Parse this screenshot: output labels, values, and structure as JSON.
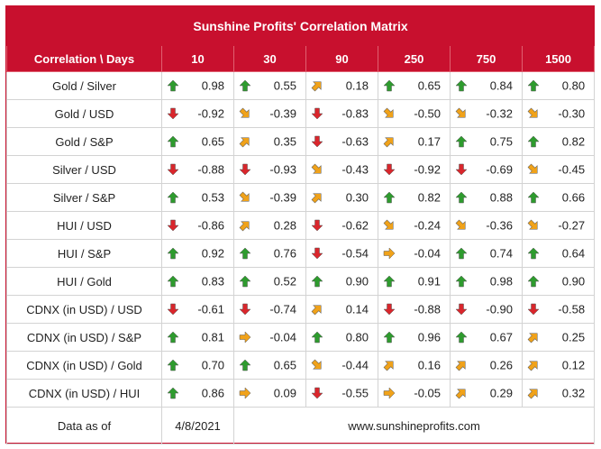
{
  "title": "Sunshine Profits' Correlation Matrix",
  "header": {
    "first": "Correlation \\ Days",
    "days": [
      "10",
      "30",
      "90",
      "250",
      "750",
      "1500"
    ]
  },
  "colors": {
    "brand": "#c8102e",
    "up": "#2e9b2e",
    "down": "#d9262c",
    "diag": "#f0a21a",
    "flat": "#f0a21a"
  },
  "rows": [
    {
      "label": "Gold / Silver",
      "cells": [
        {
          "v": "0.98",
          "a": "up"
        },
        {
          "v": "0.55",
          "a": "up"
        },
        {
          "v": "0.18",
          "a": "diag-up"
        },
        {
          "v": "0.65",
          "a": "up"
        },
        {
          "v": "0.84",
          "a": "up"
        },
        {
          "v": "0.80",
          "a": "up"
        }
      ]
    },
    {
      "label": "Gold / USD",
      "cells": [
        {
          "v": "-0.92",
          "a": "down"
        },
        {
          "v": "-0.39",
          "a": "diag-down"
        },
        {
          "v": "-0.83",
          "a": "down"
        },
        {
          "v": "-0.50",
          "a": "diag-down"
        },
        {
          "v": "-0.32",
          "a": "diag-down"
        },
        {
          "v": "-0.30",
          "a": "diag-down"
        }
      ]
    },
    {
      "label": "Gold / S&P",
      "cells": [
        {
          "v": "0.65",
          "a": "up"
        },
        {
          "v": "0.35",
          "a": "diag-up"
        },
        {
          "v": "-0.63",
          "a": "down"
        },
        {
          "v": "0.17",
          "a": "diag-up"
        },
        {
          "v": "0.75",
          "a": "up"
        },
        {
          "v": "0.82",
          "a": "up"
        }
      ]
    },
    {
      "label": "Silver / USD",
      "cells": [
        {
          "v": "-0.88",
          "a": "down"
        },
        {
          "v": "-0.93",
          "a": "down"
        },
        {
          "v": "-0.43",
          "a": "diag-down"
        },
        {
          "v": "-0.92",
          "a": "down"
        },
        {
          "v": "-0.69",
          "a": "down"
        },
        {
          "v": "-0.45",
          "a": "diag-down"
        }
      ]
    },
    {
      "label": "Silver / S&P",
      "cells": [
        {
          "v": "0.53",
          "a": "up"
        },
        {
          "v": "-0.39",
          "a": "diag-down"
        },
        {
          "v": "0.30",
          "a": "diag-up"
        },
        {
          "v": "0.82",
          "a": "up"
        },
        {
          "v": "0.88",
          "a": "up"
        },
        {
          "v": "0.66",
          "a": "up"
        }
      ]
    },
    {
      "label": "HUI / USD",
      "cells": [
        {
          "v": "-0.86",
          "a": "down"
        },
        {
          "v": "0.28",
          "a": "diag-up"
        },
        {
          "v": "-0.62",
          "a": "down"
        },
        {
          "v": "-0.24",
          "a": "diag-down"
        },
        {
          "v": "-0.36",
          "a": "diag-down"
        },
        {
          "v": "-0.27",
          "a": "diag-down"
        }
      ]
    },
    {
      "label": "HUI / S&P",
      "cells": [
        {
          "v": "0.92",
          "a": "up"
        },
        {
          "v": "0.76",
          "a": "up"
        },
        {
          "v": "-0.54",
          "a": "down"
        },
        {
          "v": "-0.04",
          "a": "flat"
        },
        {
          "v": "0.74",
          "a": "up"
        },
        {
          "v": "0.64",
          "a": "up"
        }
      ]
    },
    {
      "label": "HUI / Gold",
      "cells": [
        {
          "v": "0.83",
          "a": "up"
        },
        {
          "v": "0.52",
          "a": "up"
        },
        {
          "v": "0.90",
          "a": "up"
        },
        {
          "v": "0.91",
          "a": "up"
        },
        {
          "v": "0.98",
          "a": "up"
        },
        {
          "v": "0.90",
          "a": "up"
        }
      ]
    },
    {
      "label": "CDNX (in USD) / USD",
      "cells": [
        {
          "v": "-0.61",
          "a": "down"
        },
        {
          "v": "-0.74",
          "a": "down"
        },
        {
          "v": "0.14",
          "a": "diag-up"
        },
        {
          "v": "-0.88",
          "a": "down"
        },
        {
          "v": "-0.90",
          "a": "down"
        },
        {
          "v": "-0.58",
          "a": "down"
        }
      ]
    },
    {
      "label": "CDNX (in USD) / S&P",
      "cells": [
        {
          "v": "0.81",
          "a": "up"
        },
        {
          "v": "-0.04",
          "a": "flat"
        },
        {
          "v": "0.80",
          "a": "up"
        },
        {
          "v": "0.96",
          "a": "up"
        },
        {
          "v": "0.67",
          "a": "up"
        },
        {
          "v": "0.25",
          "a": "diag-up"
        }
      ]
    },
    {
      "label": "CDNX (in USD) / Gold",
      "cells": [
        {
          "v": "0.70",
          "a": "up"
        },
        {
          "v": "0.65",
          "a": "up"
        },
        {
          "v": "-0.44",
          "a": "diag-down"
        },
        {
          "v": "0.16",
          "a": "diag-up"
        },
        {
          "v": "0.26",
          "a": "diag-up"
        },
        {
          "v": "0.12",
          "a": "diag-up"
        }
      ]
    },
    {
      "label": "CDNX (in USD) / HUI",
      "cells": [
        {
          "v": "0.86",
          "a": "up"
        },
        {
          "v": "0.09",
          "a": "flat"
        },
        {
          "v": "-0.55",
          "a": "down"
        },
        {
          "v": "-0.05",
          "a": "flat"
        },
        {
          "v": "0.29",
          "a": "diag-up"
        },
        {
          "v": "0.32",
          "a": "diag-up"
        }
      ]
    }
  ],
  "footer": {
    "label": "Data as of",
    "date": "4/8/2021",
    "site": "www.sunshineprofits.com"
  }
}
